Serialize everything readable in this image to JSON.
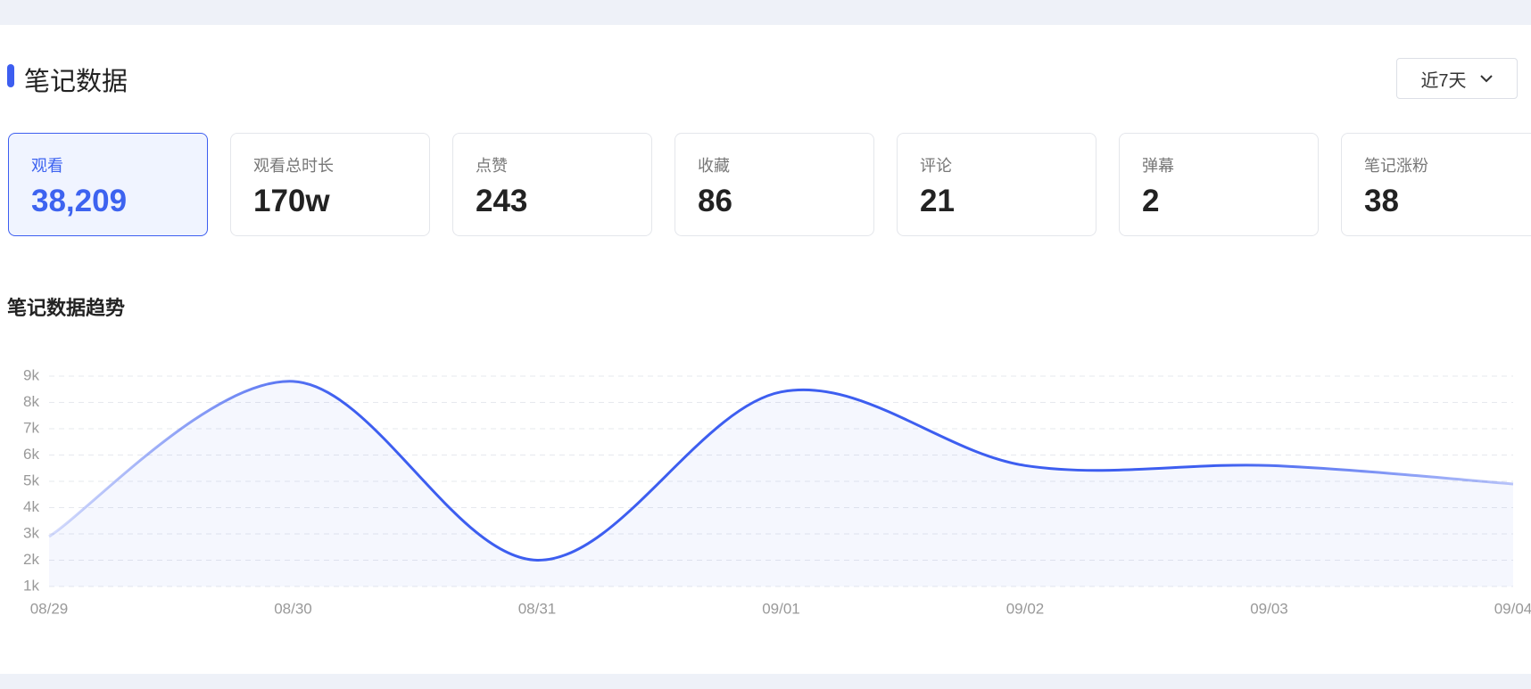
{
  "header": {
    "title": "笔记数据",
    "range": "近7天"
  },
  "metrics": [
    {
      "label": "观看",
      "value": "38,209"
    },
    {
      "label": "观看总时长",
      "value": "170w"
    },
    {
      "label": "点赞",
      "value": "243"
    },
    {
      "label": "收藏",
      "value": "86"
    },
    {
      "label": "评论",
      "value": "21"
    },
    {
      "label": "弹幕",
      "value": "2"
    },
    {
      "label": "笔记涨粉",
      "value": "38"
    }
  ],
  "chart_data": {
    "type": "line",
    "title": "笔记数据趋势",
    "categories": [
      "08/29",
      "08/30",
      "08/31",
      "09/01",
      "09/02",
      "09/03",
      "09/04"
    ],
    "values": [
      2900,
      8800,
      2000,
      8400,
      5600,
      5600,
      4900
    ],
    "color": "#3d5ef0",
    "ylim": [
      1000,
      9000
    ],
    "yticks": [
      {
        "value": 1000,
        "label": "1k"
      },
      {
        "value": 2000,
        "label": "2k"
      },
      {
        "value": 3000,
        "label": "3k"
      },
      {
        "value": 4000,
        "label": "4k"
      },
      {
        "value": 5000,
        "label": "5k"
      },
      {
        "value": 6000,
        "label": "6k"
      },
      {
        "value": 7000,
        "label": "7k"
      },
      {
        "value": 8000,
        "label": "8k"
      },
      {
        "value": 9000,
        "label": "9k"
      }
    ],
    "grid": true
  }
}
